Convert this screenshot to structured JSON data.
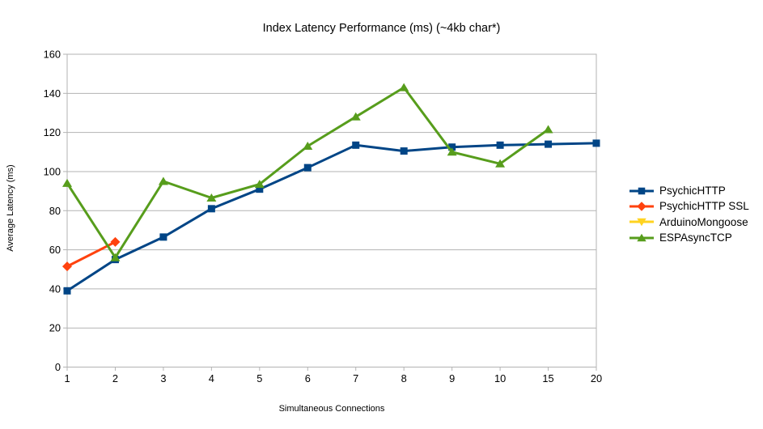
{
  "chart_data": {
    "type": "line",
    "title": "Index Latency Performance (ms) (~4kb char*)",
    "xlabel": "Simultaneous Connections",
    "ylabel": "Average Latency (ms)",
    "categories": [
      "1",
      "2",
      "3",
      "4",
      "5",
      "6",
      "7",
      "8",
      "9",
      "10",
      "15",
      "20"
    ],
    "ylim": [
      0,
      160
    ],
    "yticks": [
      0,
      20,
      40,
      60,
      80,
      100,
      120,
      140,
      160
    ],
    "grid": "horizontal",
    "legend_position": "right",
    "series": [
      {
        "name": "PsychicHTTP",
        "color": "#004586",
        "marker": "square",
        "values": [
          39,
          55,
          66.5,
          81,
          91,
          102,
          113.5,
          110.5,
          112.5,
          113.5,
          114,
          114.5
        ]
      },
      {
        "name": "PsychicHTTP SSL",
        "color": "#ff420e",
        "marker": "diamond",
        "values": [
          51.5,
          64,
          null,
          null,
          null,
          null,
          null,
          null,
          null,
          null,
          null,
          null
        ]
      },
      {
        "name": "ArduinoMongoose",
        "color": "#ffd320",
        "marker": "triangle-down",
        "values": [
          null,
          null,
          null,
          null,
          null,
          null,
          null,
          null,
          null,
          null,
          null,
          null
        ]
      },
      {
        "name": "ESPAsyncTCP",
        "color": "#579d1c",
        "marker": "triangle-up",
        "values": [
          94,
          56,
          95,
          86.5,
          93.5,
          113,
          128,
          143,
          110,
          104,
          121.5,
          null
        ]
      }
    ]
  },
  "colors": {
    "grid": "#b3b3b3",
    "axis": "#b3b3b3",
    "text": "#000000",
    "background": "#ffffff"
  }
}
